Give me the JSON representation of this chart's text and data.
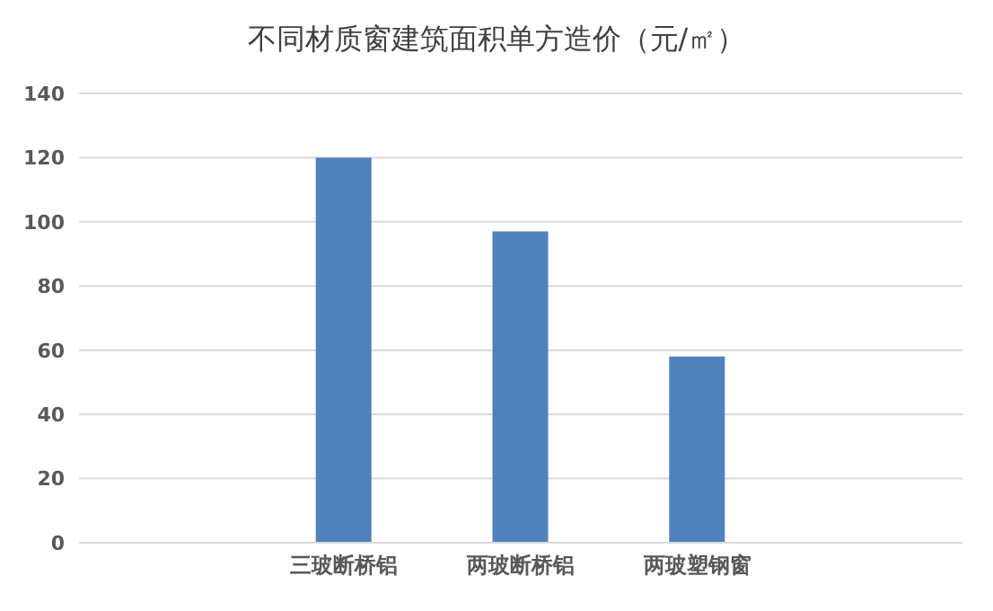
{
  "chart_data": {
    "type": "bar",
    "title": "不同材质窗建筑面积单方造价（元/㎡）",
    "categories": [
      null,
      "三玻断桥铝",
      "两玻断桥铝",
      "两玻塑钢窗",
      null
    ],
    "values": [
      null,
      120,
      97,
      58,
      null
    ],
    "color": "#4f81bd",
    "ylim": [
      0,
      140
    ],
    "yticks": [
      0,
      20,
      40,
      60,
      80,
      100,
      120,
      140
    ],
    "grid": "y"
  }
}
